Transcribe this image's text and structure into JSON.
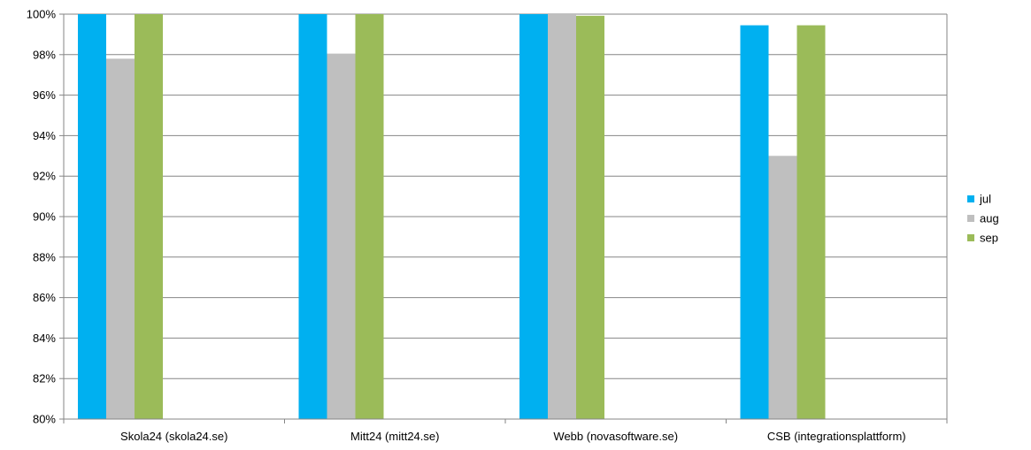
{
  "chart_data": {
    "type": "bar",
    "title": "",
    "xlabel": "",
    "ylabel": "",
    "categories": [
      "Skola24 (skola24.se)",
      "Mitt24 (mitt24.se)",
      "Webb (novasoftware.se)",
      "CSB (integrationsplattform)"
    ],
    "series": [
      {
        "name": "jul",
        "color": "#00B0F0",
        "values": [
          100.0,
          100.0,
          100.0,
          99.45
        ]
      },
      {
        "name": "aug",
        "color": "#BFBFBF",
        "values": [
          97.8,
          98.05,
          100.0,
          93.0
        ]
      },
      {
        "name": "sep",
        "color": "#9BBB59",
        "values": [
          100.0,
          100.0,
          99.92,
          99.45
        ]
      }
    ],
    "ylim": [
      80,
      100
    ],
    "yticks": [
      80,
      82,
      84,
      86,
      88,
      90,
      92,
      94,
      96,
      98,
      100
    ],
    "ytick_labels": [
      "80%",
      "82%",
      "84%",
      "86%",
      "88%",
      "90%",
      "92%",
      "94%",
      "96%",
      "98%",
      "100%"
    ],
    "grid": true,
    "legend_position": "right"
  }
}
